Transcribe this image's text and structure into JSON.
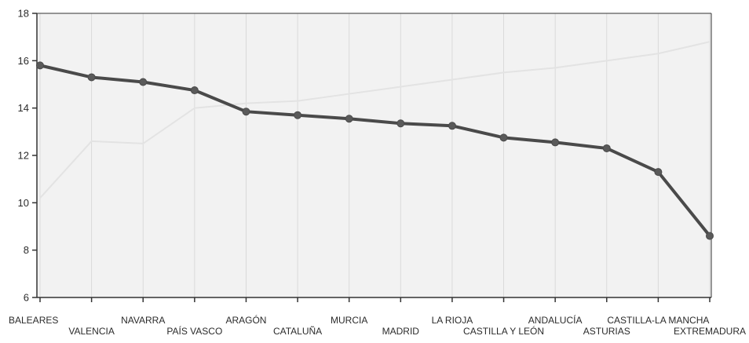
{
  "chart_data": {
    "type": "line",
    "title": "",
    "xlabel": "",
    "ylabel": "",
    "ylim": [
      6,
      18
    ],
    "yticks": [
      6,
      8,
      10,
      12,
      14,
      16,
      18
    ],
    "grid": "vertical",
    "categories": [
      "BALEARES",
      "VALENCIA",
      "NAVARRA",
      "PAÍS VASCO",
      "ARAGÓN",
      "CATALUÑA",
      "MURCIA",
      "MADRID",
      "LA RIOJA",
      "CASTILLA Y LEÓN",
      "ANDALUCÍA",
      "ASTURIAS",
      "CASTILLA-LA MANCHA",
      "EXTREMADURA"
    ],
    "series": [
      {
        "values": [
          15.8,
          15.3,
          15.1,
          14.75,
          13.85,
          13.7,
          13.55,
          13.35,
          13.25,
          12.75,
          12.55,
          12.3,
          11.3,
          8.6
        ],
        "color": "#4a4a4a"
      }
    ],
    "background_series": {
      "values": [
        10.2,
        12.6,
        12.5,
        14.0,
        14.2,
        14.3,
        14.6,
        14.9,
        15.2,
        15.5,
        15.7,
        16.0,
        16.3,
        16.8
      ],
      "color": "#e3e3e3"
    },
    "colors": {
      "plot_background": "#f2f2f2",
      "grid": "#dadada",
      "axis": "#333333"
    }
  }
}
